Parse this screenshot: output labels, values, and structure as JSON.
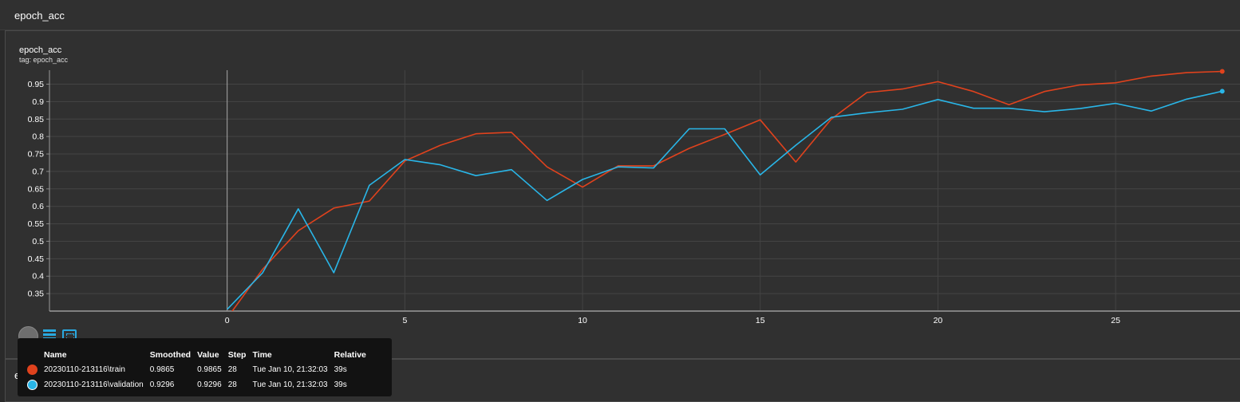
{
  "section": {
    "title": "epoch_acc"
  },
  "card": {
    "title": "epoch_acc",
    "tag": "tag: epoch_acc"
  },
  "section2": {
    "title": "epoch_loss"
  },
  "colors": {
    "train": "#e0421d",
    "validation": "#29b6e8"
  },
  "icons": [
    "toggle-circle-icon",
    "list-icon",
    "fit-domain-icon"
  ],
  "chart_data": {
    "type": "line",
    "title": "",
    "xlabel": "",
    "ylabel": "",
    "xlim": [
      -5,
      28.5
    ],
    "ylim": [
      0.3,
      0.99
    ],
    "x_ticks": [
      0,
      5,
      10,
      15,
      20,
      25
    ],
    "y_ticks": [
      0.35,
      0.4,
      0.45,
      0.5,
      0.55,
      0.6,
      0.65,
      0.7,
      0.75,
      0.8,
      0.85,
      0.9,
      0.95
    ],
    "grid": true,
    "series": [
      {
        "name": "20230110-213116\\train",
        "color": "#e0421d",
        "x": [
          0,
          1,
          2,
          3,
          4,
          5,
          6,
          7,
          8,
          9,
          10,
          11,
          12,
          13,
          14,
          15,
          16,
          17,
          18,
          19,
          20,
          21,
          22,
          23,
          24,
          25,
          26,
          27,
          28
        ],
        "y": [
          0.28,
          0.42,
          0.53,
          0.595,
          0.615,
          0.73,
          0.775,
          0.808,
          0.812,
          0.713,
          0.655,
          0.716,
          0.716,
          0.766,
          0.806,
          0.848,
          0.727,
          0.85,
          0.926,
          0.936,
          0.957,
          0.929,
          0.891,
          0.929,
          0.948,
          0.954,
          0.973,
          0.983,
          0.9865
        ]
      },
      {
        "name": "20230110-213116\\validation",
        "color": "#29b6e8",
        "x": [
          0,
          1,
          2,
          3,
          4,
          5,
          6,
          7,
          8,
          9,
          10,
          11,
          12,
          13,
          14,
          15,
          16,
          17,
          18,
          19,
          20,
          21,
          22,
          23,
          24,
          25,
          26,
          27,
          28
        ],
        "y": [
          0.305,
          0.41,
          0.593,
          0.41,
          0.66,
          0.734,
          0.719,
          0.688,
          0.705,
          0.617,
          0.677,
          0.713,
          0.71,
          0.822,
          0.822,
          0.69,
          0.775,
          0.855,
          0.868,
          0.878,
          0.906,
          0.881,
          0.881,
          0.871,
          0.88,
          0.895,
          0.873,
          0.907,
          0.9296
        ]
      }
    ]
  },
  "tooltip": {
    "headers": {
      "name": "Name",
      "smoothed": "Smoothed",
      "value": "Value",
      "step": "Step",
      "time": "Time",
      "relative": "Relative"
    },
    "rows": [
      {
        "name": "20230110-213116\\train",
        "smoothed": "0.9865",
        "value": "0.9865",
        "step": "28",
        "time": "Tue Jan 10, 21:32:03",
        "relative": "39s",
        "color": "#e0421d"
      },
      {
        "name": "20230110-213116\\validation",
        "smoothed": "0.9296",
        "value": "0.9296",
        "step": "28",
        "time": "Tue Jan 10, 21:32:03",
        "relative": "39s",
        "color": "#29b6e8"
      }
    ]
  }
}
